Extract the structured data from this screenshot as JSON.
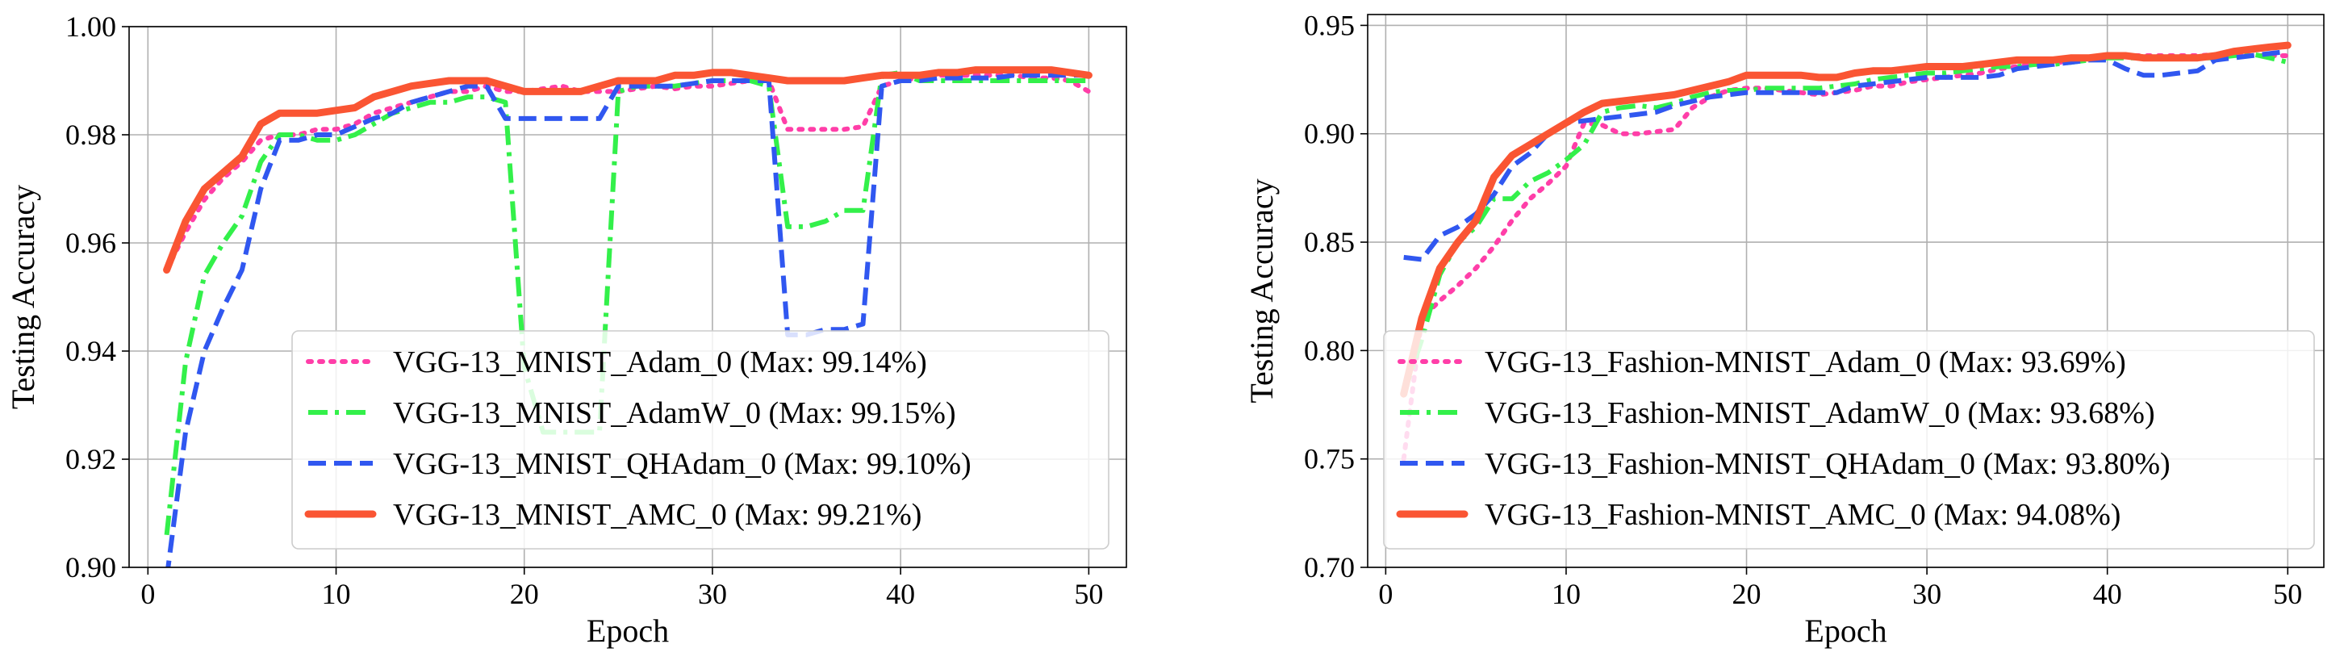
{
  "chart_data": [
    {
      "type": "line",
      "xlabel": "Epoch",
      "ylabel": "Testing Accuracy",
      "xlim": [
        -1,
        52
      ],
      "ylim": [
        0.9,
        1.0
      ],
      "xticks": [
        0,
        10,
        20,
        30,
        40,
        50
      ],
      "yticks": [
        0.9,
        0.92,
        0.94,
        0.96,
        0.98,
        1.0
      ],
      "ytick_labels": [
        "0.90",
        "0.92",
        "0.94",
        "0.96",
        "0.98",
        "1.00"
      ],
      "grid": true,
      "legend_loc": "lower-right",
      "x": [
        1,
        2,
        3,
        4,
        5,
        6,
        7,
        8,
        9,
        10,
        11,
        12,
        13,
        14,
        15,
        16,
        17,
        18,
        19,
        20,
        21,
        22,
        23,
        24,
        25,
        26,
        27,
        28,
        29,
        30,
        31,
        32,
        33,
        34,
        35,
        36,
        37,
        38,
        39,
        40,
        41,
        42,
        43,
        44,
        45,
        46,
        47,
        48,
        49,
        50
      ],
      "series": [
        {
          "name": "VGG-13_MNIST_Adam_0 (Max: 99.14%)",
          "color": "#ff3ea8",
          "style": "dotted",
          "values": [
            0.955,
            0.962,
            0.968,
            0.972,
            0.975,
            0.979,
            0.98,
            0.98,
            0.981,
            0.981,
            0.982,
            0.984,
            0.985,
            0.986,
            0.987,
            0.988,
            0.988,
            0.989,
            0.988,
            0.988,
            0.9885,
            0.989,
            0.988,
            0.988,
            0.988,
            0.9885,
            0.989,
            0.9885,
            0.989,
            0.989,
            0.9895,
            0.99,
            0.99,
            0.981,
            0.981,
            0.981,
            0.981,
            0.9815,
            0.989,
            0.99,
            0.9905,
            0.991,
            0.991,
            0.991,
            0.991,
            0.991,
            0.9905,
            0.9905,
            0.99,
            0.988
          ]
        },
        {
          "name": "VGG-13_MNIST_AdamW_0 (Max: 99.15%)",
          "color": "#33f04a",
          "style": "dashdot",
          "values": [
            0.906,
            0.938,
            0.954,
            0.96,
            0.965,
            0.975,
            0.98,
            0.98,
            0.979,
            0.979,
            0.98,
            0.982,
            0.984,
            0.985,
            0.986,
            0.986,
            0.987,
            0.987,
            0.986,
            0.937,
            0.925,
            0.925,
            0.925,
            0.925,
            0.988,
            0.989,
            0.989,
            0.989,
            0.9895,
            0.99,
            0.99,
            0.99,
            0.989,
            0.963,
            0.963,
            0.964,
            0.966,
            0.966,
            0.991,
            0.9915,
            0.99,
            0.99,
            0.99,
            0.99,
            0.99,
            0.99,
            0.99,
            0.99,
            0.99,
            0.99
          ]
        },
        {
          "name": "VGG-13_MNIST_QHAdam_0 (Max: 99.10%)",
          "color": "#3057f0",
          "style": "dashed",
          "values": [
            0.898,
            0.925,
            0.94,
            0.948,
            0.955,
            0.97,
            0.979,
            0.979,
            0.98,
            0.98,
            0.9815,
            0.983,
            0.984,
            0.986,
            0.987,
            0.988,
            0.989,
            0.989,
            0.983,
            0.983,
            0.983,
            0.983,
            0.983,
            0.983,
            0.989,
            0.989,
            0.989,
            0.989,
            0.9895,
            0.99,
            0.99,
            0.99,
            0.99,
            0.943,
            0.943,
            0.944,
            0.944,
            0.945,
            0.989,
            0.99,
            0.99,
            0.9905,
            0.9905,
            0.9905,
            0.9905,
            0.991,
            0.991,
            0.991,
            0.991,
            0.991
          ]
        },
        {
          "name": "VGG-13_MNIST_AMC_0 (Max: 99.21%)",
          "color": "#fa5533",
          "style": "solid",
          "values": [
            0.955,
            0.964,
            0.97,
            0.973,
            0.976,
            0.982,
            0.984,
            0.984,
            0.984,
            0.9845,
            0.985,
            0.987,
            0.988,
            0.989,
            0.9895,
            0.99,
            0.99,
            0.99,
            0.989,
            0.988,
            0.988,
            0.988,
            0.988,
            0.989,
            0.99,
            0.99,
            0.99,
            0.991,
            0.991,
            0.9915,
            0.9915,
            0.991,
            0.9905,
            0.99,
            0.99,
            0.99,
            0.99,
            0.9905,
            0.991,
            0.991,
            0.991,
            0.9915,
            0.9915,
            0.992,
            0.992,
            0.992,
            0.992,
            0.992,
            0.9915,
            0.991
          ]
        }
      ]
    },
    {
      "type": "line",
      "xlabel": "Epoch",
      "ylabel": "Testing Accuracy",
      "xlim": [
        -1,
        52
      ],
      "ylim": [
        0.7,
        0.955
      ],
      "xticks": [
        0,
        10,
        20,
        30,
        40,
        50
      ],
      "yticks": [
        0.7,
        0.75,
        0.8,
        0.85,
        0.9,
        0.95
      ],
      "ytick_labels": [
        "0.70",
        "0.75",
        "0.80",
        "0.85",
        "0.90",
        "0.95"
      ],
      "grid": true,
      "legend_loc": "lower-right",
      "x": [
        1,
        2,
        3,
        4,
        5,
        6,
        7,
        8,
        9,
        10,
        11,
        12,
        13,
        14,
        15,
        16,
        17,
        18,
        19,
        20,
        21,
        22,
        23,
        24,
        25,
        26,
        27,
        28,
        29,
        30,
        31,
        32,
        33,
        34,
        35,
        36,
        37,
        38,
        39,
        40,
        41,
        42,
        43,
        44,
        45,
        46,
        47,
        48,
        49,
        50
      ],
      "series": [
        {
          "name": "VGG-13_Fashion-MNIST_Adam_0 (Max: 93.69%)",
          "color": "#ff3ea8",
          "style": "dotted",
          "values": [
            0.75,
            0.815,
            0.823,
            0.83,
            0.838,
            0.848,
            0.86,
            0.87,
            0.877,
            0.885,
            0.905,
            0.904,
            0.9,
            0.9,
            0.901,
            0.902,
            0.912,
            0.917,
            0.92,
            0.921,
            0.921,
            0.92,
            0.919,
            0.918,
            0.919,
            0.92,
            0.922,
            0.922,
            0.924,
            0.925,
            0.926,
            0.927,
            0.928,
            0.93,
            0.931,
            0.932,
            0.933,
            0.933,
            0.935,
            0.936,
            0.936,
            0.936,
            0.936,
            0.936,
            0.936,
            0.9365,
            0.9369,
            0.936,
            0.936,
            0.936
          ]
        },
        {
          "name": "VGG-13_Fashion-MNIST_AdamW_0 (Max: 93.68%)",
          "color": "#33f04a",
          "style": "dashdot",
          "values": [
            0.78,
            0.805,
            0.835,
            0.85,
            0.857,
            0.87,
            0.87,
            0.878,
            0.882,
            0.888,
            0.895,
            0.91,
            0.912,
            0.913,
            0.912,
            0.914,
            0.917,
            0.919,
            0.92,
            0.92,
            0.921,
            0.921,
            0.921,
            0.921,
            0.922,
            0.923,
            0.925,
            0.926,
            0.927,
            0.928,
            0.928,
            0.929,
            0.93,
            0.931,
            0.931,
            0.932,
            0.932,
            0.933,
            0.934,
            0.935,
            0.935,
            0.935,
            0.935,
            0.935,
            0.935,
            0.935,
            0.936,
            0.9368,
            0.935,
            0.933
          ]
        },
        {
          "name": "VGG-13_Fashion-MNIST_QHAdam_0 (Max: 93.80%)",
          "color": "#3057f0",
          "style": "dashed",
          "values": [
            0.843,
            0.842,
            0.853,
            0.857,
            0.863,
            0.872,
            0.885,
            0.891,
            0.9,
            0.905,
            0.906,
            0.907,
            0.908,
            0.909,
            0.91,
            0.913,
            0.915,
            0.917,
            0.918,
            0.919,
            0.919,
            0.919,
            0.919,
            0.919,
            0.919,
            0.922,
            0.923,
            0.924,
            0.925,
            0.926,
            0.926,
            0.926,
            0.926,
            0.927,
            0.93,
            0.931,
            0.932,
            0.933,
            0.934,
            0.934,
            0.93,
            0.927,
            0.927,
            0.928,
            0.929,
            0.934,
            0.935,
            0.936,
            0.937,
            0.938
          ]
        },
        {
          "name": "VGG-13_Fashion-MNIST_AMC_0 (Max: 94.08%)",
          "color": "#fa5533",
          "style": "solid",
          "values": [
            0.78,
            0.815,
            0.838,
            0.85,
            0.86,
            0.88,
            0.89,
            0.895,
            0.9,
            0.905,
            0.91,
            0.914,
            0.915,
            0.916,
            0.917,
            0.918,
            0.92,
            0.922,
            0.924,
            0.927,
            0.927,
            0.927,
            0.927,
            0.926,
            0.926,
            0.928,
            0.929,
            0.929,
            0.93,
            0.931,
            0.931,
            0.931,
            0.932,
            0.933,
            0.934,
            0.934,
            0.934,
            0.935,
            0.935,
            0.936,
            0.936,
            0.935,
            0.935,
            0.935,
            0.935,
            0.936,
            0.938,
            0.939,
            0.94,
            0.9408
          ]
        }
      ]
    }
  ]
}
